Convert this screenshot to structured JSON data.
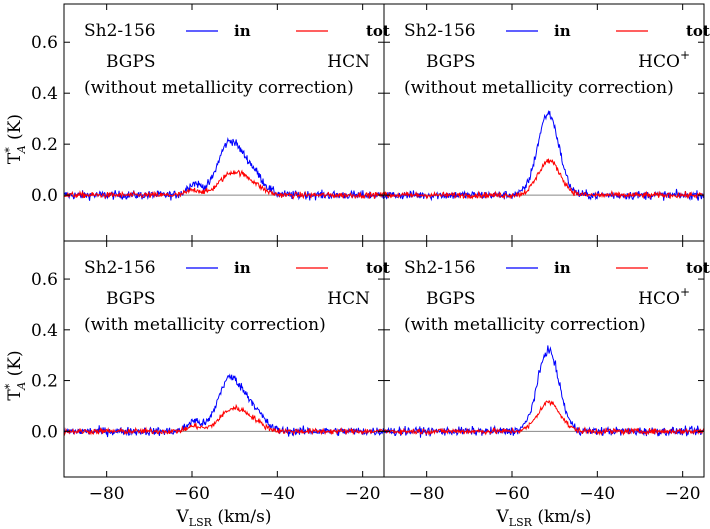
{
  "chart_data": [
    {
      "type": "line",
      "panel": "top-left",
      "source": "Sh2-156",
      "survey": "BGPS",
      "line": "HCN",
      "note": "(without metallicity correction)",
      "ylabel": "T*A (K)",
      "xlabel": "",
      "xlim": [
        -90,
        -15
      ],
      "ylim": [
        -0.18,
        0.75
      ],
      "legend": {
        "position": "top",
        "entries": [
          "in",
          "tot"
        ]
      },
      "series": [
        {
          "name": "in",
          "color": "#0000ff",
          "noise": 0.012,
          "components": [
            {
              "center": -51.5,
              "amp": 0.19,
              "width": 2.6
            },
            {
              "center": -46.5,
              "amp": 0.1,
              "width": 2.8
            },
            {
              "center": -59.5,
              "amp": 0.045,
              "width": 1.6
            }
          ]
        },
        {
          "name": "tot",
          "color": "#ff0000",
          "noise": 0.008,
          "components": [
            {
              "center": -51.0,
              "amp": 0.075,
              "width": 2.8
            },
            {
              "center": -46.5,
              "amp": 0.045,
              "width": 2.8
            },
            {
              "center": -59.5,
              "amp": 0.02,
              "width": 1.6
            }
          ]
        }
      ]
    },
    {
      "type": "line",
      "panel": "top-right",
      "source": "Sh2-156",
      "survey": "BGPS",
      "line": "HCO",
      "line_sup": "+",
      "note": "(without metallicity correction)",
      "ylabel": "",
      "xlabel": "",
      "xlim": [
        -90,
        -15
      ],
      "ylim": [
        -0.18,
        0.75
      ],
      "legend": {
        "position": "top",
        "entries": [
          "in",
          "tot"
        ]
      },
      "series": [
        {
          "name": "in",
          "color": "#0000ff",
          "noise": 0.012,
          "components": [
            {
              "center": -51.5,
              "amp": 0.32,
              "width": 2.5
            }
          ]
        },
        {
          "name": "tot",
          "color": "#ff0000",
          "noise": 0.008,
          "components": [
            {
              "center": -51.3,
              "amp": 0.135,
              "width": 2.6
            }
          ]
        }
      ]
    },
    {
      "type": "line",
      "panel": "bottom-left",
      "source": "Sh2-156",
      "survey": "BGPS",
      "line": "HCN",
      "note": "(with metallicity correction)",
      "ylabel": "T*A (K)",
      "xlabel": "VLSR (km/s)",
      "xlim": [
        -90,
        -15
      ],
      "ylim": [
        -0.18,
        0.75
      ],
      "legend": {
        "position": "top",
        "entries": [
          "in",
          "tot"
        ]
      },
      "series": [
        {
          "name": "in",
          "color": "#0000ff",
          "noise": 0.012,
          "components": [
            {
              "center": -51.5,
              "amp": 0.19,
              "width": 2.6
            },
            {
              "center": -46.5,
              "amp": 0.1,
              "width": 2.8
            },
            {
              "center": -59.5,
              "amp": 0.04,
              "width": 1.6
            }
          ]
        },
        {
          "name": "tot",
          "color": "#ff0000",
          "noise": 0.008,
          "components": [
            {
              "center": -51.0,
              "amp": 0.075,
              "width": 2.8
            },
            {
              "center": -46.5,
              "amp": 0.045,
              "width": 2.8
            },
            {
              "center": -59.5,
              "amp": 0.02,
              "width": 1.6
            }
          ]
        }
      ]
    },
    {
      "type": "line",
      "panel": "bottom-right",
      "source": "Sh2-156",
      "survey": "BGPS",
      "line": "HCO",
      "line_sup": "+",
      "note": "(with metallicity correction)",
      "ylabel": "",
      "xlabel": "VLSR (km/s)",
      "xlim": [
        -90,
        -15
      ],
      "ylim": [
        -0.18,
        0.75
      ],
      "legend": {
        "position": "top",
        "entries": [
          "in",
          "tot"
        ]
      },
      "series": [
        {
          "name": "in",
          "color": "#0000ff",
          "noise": 0.012,
          "components": [
            {
              "center": -51.5,
              "amp": 0.32,
              "width": 2.5
            }
          ]
        },
        {
          "name": "tot",
          "color": "#ff0000",
          "noise": 0.008,
          "components": [
            {
              "center": -51.3,
              "amp": 0.115,
              "width": 2.6
            }
          ]
        }
      ]
    }
  ],
  "axes": {
    "yticks": [
      0.0,
      0.2,
      0.4,
      0.6
    ],
    "ytick_labels": [
      "0.0",
      "0.2",
      "0.4",
      "0.6"
    ],
    "xticks": [
      -80,
      -60,
      -40,
      -20
    ],
    "xtick_labels": [
      "−80",
      "−60",
      "−40",
      "−20"
    ],
    "ylabel_main": "T",
    "ylabel_sup": "*",
    "ylabel_sub": "A",
    "ylabel_unit": " (K)",
    "xlabel_main": "V",
    "xlabel_sub": "LSR",
    "xlabel_unit": " (km/s)"
  },
  "colors": {
    "in": "#0000ff",
    "tot": "#ff0000",
    "zero_line": "#888888"
  }
}
